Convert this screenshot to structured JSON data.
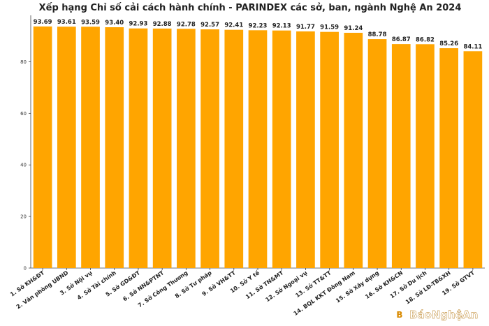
{
  "watermark": "BáoNghệAn",
  "colors": {
    "bar": "#FFA500",
    "axis": "#444444",
    "text": "#222222"
  },
  "chart_data": {
    "type": "bar",
    "title": "Xếp hạng Chỉ số cải cách hành chính - PARINDEX các sở, ban, ngành Nghệ An 2024",
    "xlabel": "",
    "ylabel": "",
    "ylim": [
      0,
      98
    ],
    "yticks": [
      0,
      20,
      40,
      60,
      80
    ],
    "grid": false,
    "categories": [
      "1. Sở KH&ĐT",
      "2. Văn phòng UBND",
      "3. Sở Nội vụ",
      "4. Sở Tài chính",
      "5. Sở GD&ĐT",
      "6. Sở NN&PTNT",
      "7. Sở Công Thương",
      "8. Sở Tư pháp",
      "9. Sở VH&TT",
      "10. Sở Y tế",
      "11. Sở TN&MT",
      "12. Sở Ngoại vụ",
      "13. Sở TT&TT",
      "14. BQL KKT Đông Nam",
      "15. Sở Xây dựng",
      "16. Sở KH&CN",
      "17. Sở Du lịch",
      "18. Sở LĐ-TB&XH",
      "19. Sở GTVT"
    ],
    "values": [
      93.69,
      93.61,
      93.59,
      93.4,
      92.93,
      92.88,
      92.78,
      92.57,
      92.41,
      92.23,
      92.13,
      91.77,
      91.59,
      91.24,
      88.78,
      86.87,
      86.82,
      85.26,
      84.11
    ],
    "value_labels": [
      "93.69",
      "93.61",
      "93.59",
      "93.40",
      "92.93",
      "92.88",
      "92.78",
      "92.57",
      "92.41",
      "92.23",
      "92.13",
      "91.77",
      "91.59",
      "91.24",
      "88.78",
      "86.87",
      "86.82",
      "85.26",
      "84.11"
    ]
  }
}
